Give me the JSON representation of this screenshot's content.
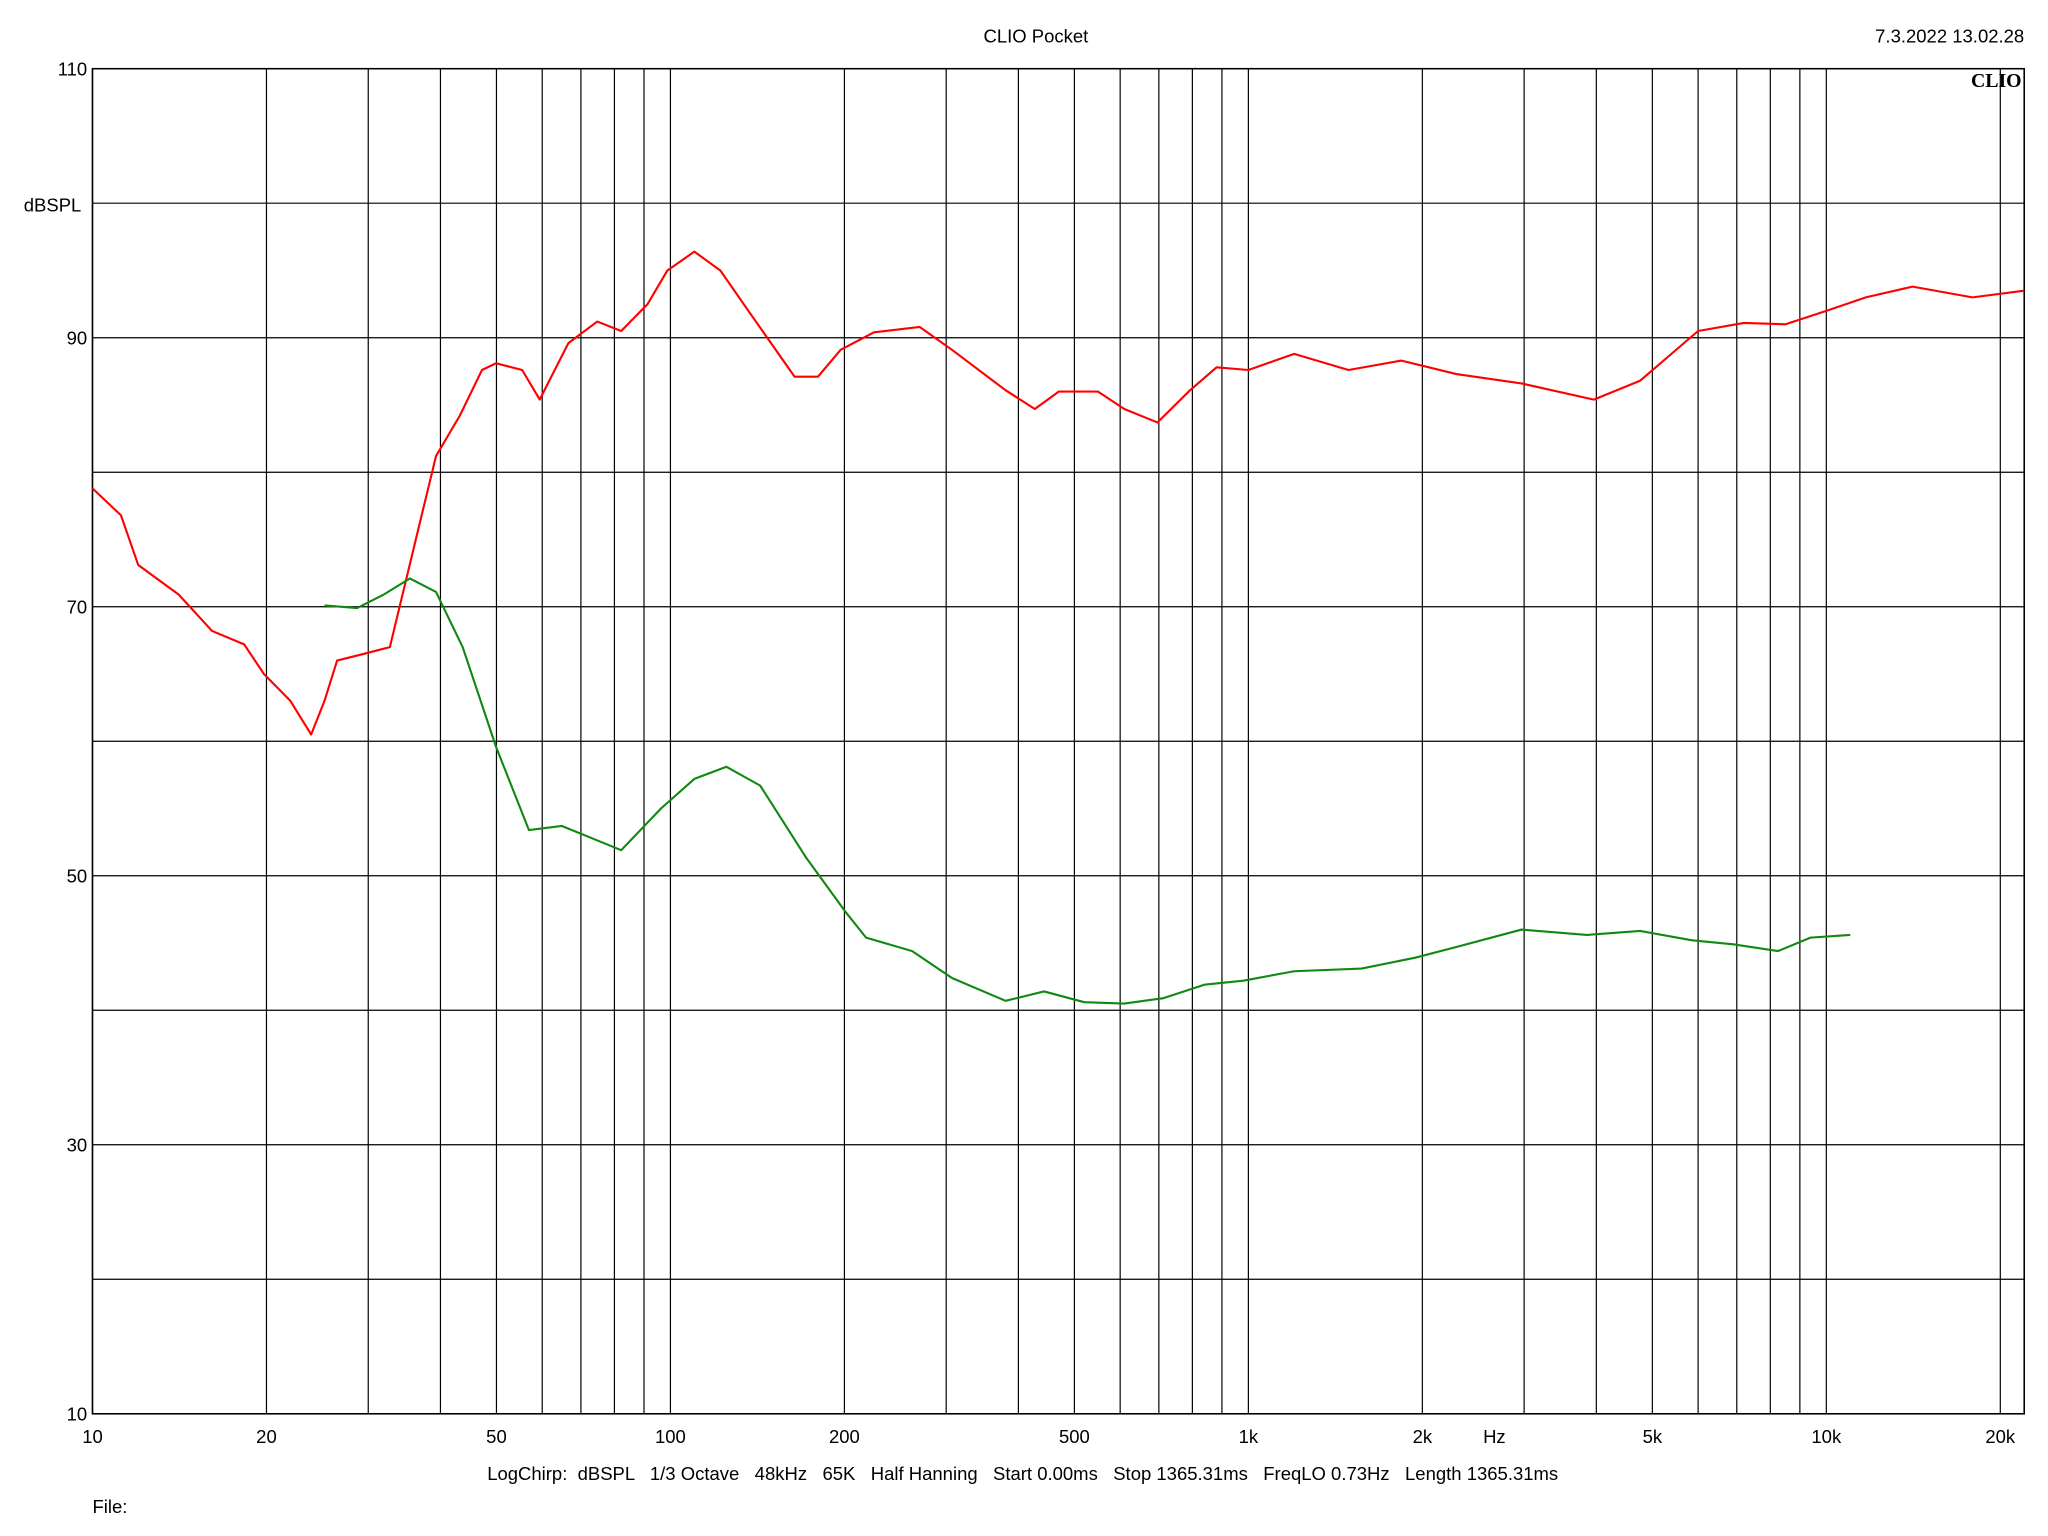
{
  "chart_data": {
    "type": "line",
    "title": "CLIO Pocket",
    "date": "7.3.2022 13.02.28",
    "logo": "CLIO",
    "ylabel": "dBSPL",
    "xlabel": "Hz",
    "footer": "LogChirp:  dBSPL   1/3 Octave   48kHz   65K   Half Hanning   Start 0.00ms   Stop 1365.31ms   FreqLO 0.73Hz   Length 1365.31ms",
    "file_label": "File:",
    "xscale": "log",
    "grid": true,
    "xlim": [
      10,
      22000
    ],
    "ylim": [
      10,
      110
    ],
    "xticks": [
      10,
      20,
      50,
      100,
      200,
      500,
      {
        "value": 1000,
        "label": "1k"
      },
      {
        "value": 2000,
        "label": "2k"
      },
      {
        "value": 5000,
        "label": "5k"
      },
      {
        "value": 10000,
        "label": "10k"
      },
      {
        "value": 20000,
        "label": "20k"
      }
    ],
    "xminor": [
      30,
      40,
      60,
      70,
      80,
      90,
      300,
      400,
      600,
      700,
      800,
      900,
      3000,
      4000,
      6000,
      7000,
      8000,
      9000
    ],
    "yticks": [
      10,
      30,
      50,
      70,
      90,
      110
    ],
    "yminor": [
      20,
      40,
      60,
      80,
      100
    ],
    "series": [
      {
        "color": "#ff0000",
        "x": [
          10,
          11.2,
          12,
          14.1,
          16.1,
          18.3,
          19.8,
          22,
          23.9,
          25.2,
          26.5,
          29.5,
          32.7,
          36.4,
          39.3,
          43.2,
          47.2,
          49.9,
          55.4,
          59.4,
          66.6,
          74.7,
          82.2,
          91.3,
          98.8,
          110,
          122,
          139,
          164,
          180,
          197,
          225,
          270,
          307,
          380,
          427,
          470,
          549,
          610,
          696,
          793,
          881,
          1000,
          1200,
          1490,
          1840,
          2290,
          2970,
          3960,
          4760,
          6000,
          7200,
          8500,
          10000,
          11700,
          14100,
          17900,
          22000
        ],
        "values": [
          78.8,
          76.8,
          73.1,
          70.9,
          68.2,
          67.2,
          65.0,
          63.0,
          60.5,
          63.0,
          66.0,
          66.5,
          67.0,
          75.3,
          81.2,
          84.2,
          87.6,
          88.1,
          87.6,
          85.4,
          89.6,
          91.2,
          90.5,
          92.5,
          95.0,
          96.4,
          95.0,
          91.5,
          87.1,
          87.1,
          89.1,
          90.4,
          90.8,
          89.1,
          86.1,
          84.7,
          86.0,
          86.0,
          84.7,
          83.7,
          86.1,
          87.8,
          87.6,
          88.8,
          87.6,
          88.3,
          87.3,
          86.6,
          85.4,
          86.8,
          90.5,
          91.1,
          91.0,
          92.0,
          93.0,
          93.8,
          93.0,
          93.5
        ]
      },
      {
        "color": "#118811",
        "x": [
          25.2,
          28.7,
          31.9,
          35.4,
          39.3,
          43.7,
          49.9,
          56.9,
          64.9,
          74,
          82.2,
          96.3,
          110,
          125,
          143,
          172,
          201,
          218,
          262,
          307,
          380,
          443,
          520,
          610,
          713,
          839,
          980,
          1200,
          1570,
          1940,
          2290,
          2970,
          3850,
          4760,
          5860,
          6900,
          8250,
          9390,
          11000
        ],
        "values": [
          70.1,
          69.9,
          70.9,
          72.1,
          71.1,
          67.0,
          59.6,
          53.4,
          53.7,
          52.7,
          51.9,
          55.0,
          57.2,
          58.1,
          56.7,
          51.3,
          47.3,
          45.4,
          44.4,
          42.4,
          40.7,
          41.4,
          40.6,
          40.5,
          40.9,
          41.9,
          42.2,
          42.9,
          43.1,
          43.9,
          44.7,
          46.0,
          45.6,
          45.9,
          45.2,
          44.9,
          44.4,
          45.4,
          45.6
        ]
      }
    ]
  }
}
